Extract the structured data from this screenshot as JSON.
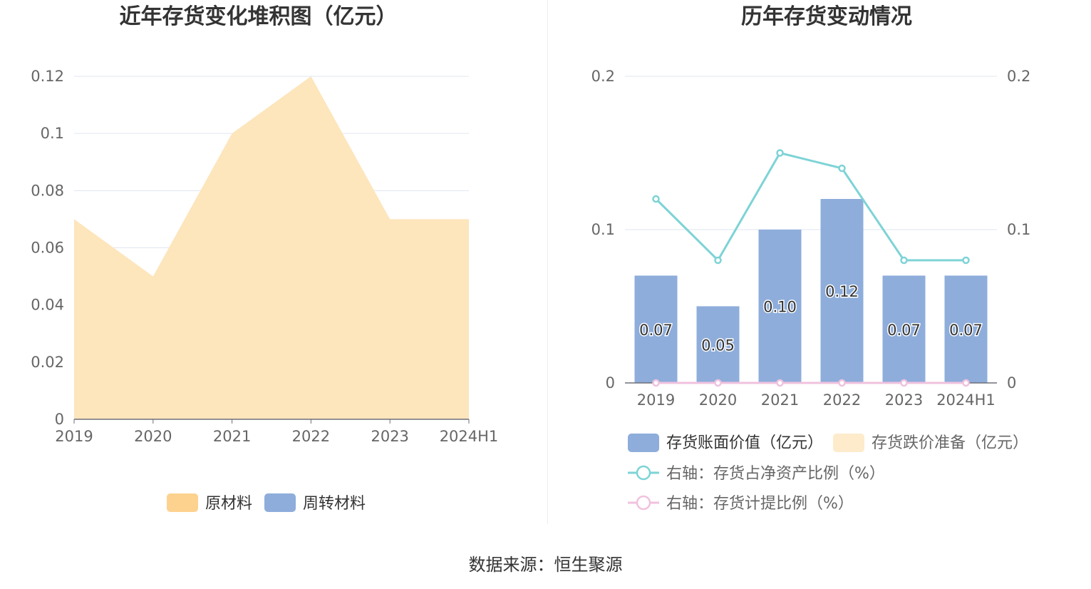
{
  "left_chart": {
    "title": "近年存货变化堆积图（亿元）",
    "legend": [
      {
        "label": "原材料",
        "color": "#fdd28f"
      },
      {
        "label": "周转材料",
        "color": "#8eaddb"
      }
    ]
  },
  "right_chart": {
    "title": "历年存货变动情况",
    "legend": [
      {
        "label": "存货账面价值（亿元）",
        "color": "#8eaddb"
      },
      {
        "label": "存货跌价准备（亿元）",
        "color": "#fdebcb"
      },
      {
        "label": "右轴：存货占净资产比例（%）",
        "color": "#7ed3d6"
      },
      {
        "label": "右轴：存货计提比例（%）",
        "color": "#f0c2de"
      }
    ]
  },
  "source": "数据来源：恒生聚源",
  "chart_data": [
    {
      "type": "area",
      "title": "近年存货变化堆积图（亿元）",
      "categories": [
        "2019",
        "2020",
        "2021",
        "2022",
        "2023",
        "2024H1"
      ],
      "series": [
        {
          "name": "原材料",
          "values": [
            0.07,
            0.05,
            0.1,
            0.12,
            0.07,
            0.07
          ],
          "color": "#fde5bc"
        },
        {
          "name": "周转材料",
          "values": [
            0,
            0,
            0,
            0,
            0,
            0
          ],
          "color": "#8eaddb"
        }
      ],
      "yticks": [
        "0",
        "0.02",
        "0.04",
        "0.06",
        "0.08",
        "0.1",
        "0.12"
      ],
      "ylim": [
        0,
        0.12
      ],
      "stacked": true,
      "grid": true,
      "legend_position": "bottom"
    },
    {
      "type": "bar",
      "title": "历年存货变动情况",
      "categories": [
        "2019",
        "2020",
        "2021",
        "2022",
        "2023",
        "2024H1"
      ],
      "series": [
        {
          "name": "存货账面价值（亿元）",
          "type": "bar",
          "axis": "left",
          "values": [
            0.07,
            0.05,
            0.1,
            0.12,
            0.07,
            0.07
          ],
          "labels": [
            "0.07",
            "0.05",
            "0.10",
            "0.12",
            "0.07",
            "0.07"
          ],
          "color": "#8eaddb"
        },
        {
          "name": "存货跌价准备（亿元）",
          "type": "bar",
          "axis": "left",
          "values": [
            0,
            0,
            0,
            0,
            0,
            0
          ],
          "color": "#fdebcb"
        },
        {
          "name": "右轴：存货占净资产比例（%）",
          "type": "line",
          "axis": "right",
          "values": [
            0.12,
            0.08,
            0.15,
            0.14,
            0.08,
            0.08
          ],
          "color": "#7ed3d6"
        },
        {
          "name": "右轴：存货计提比例（%）",
          "type": "line",
          "axis": "right",
          "values": [
            0,
            0,
            0,
            0,
            0,
            0
          ],
          "color": "#f0c2de"
        }
      ],
      "left_yticks": [
        "0",
        "0.1",
        "0.2"
      ],
      "right_yticks": [
        "0",
        "0.1",
        "0.2"
      ],
      "ylim_left": [
        0,
        0.2
      ],
      "ylim_right": [
        0,
        0.2
      ],
      "grid": true,
      "legend_position": "bottom"
    }
  ]
}
